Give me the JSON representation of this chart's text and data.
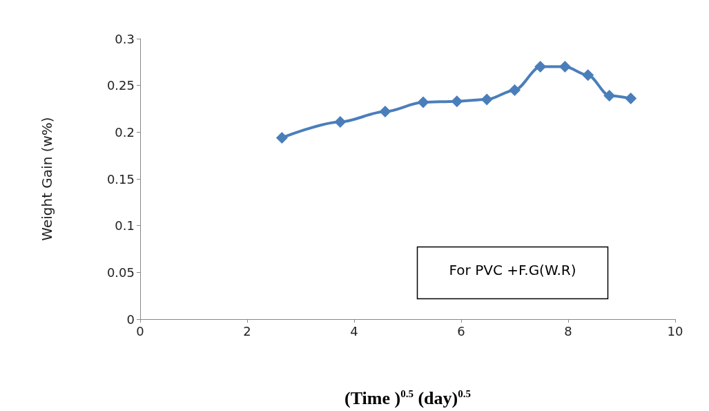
{
  "chart_data": {
    "type": "line",
    "xlabel": "(Time )$^{0.5}$ (day)$^{0.5}$",
    "ylabel": "Weight Gain (w%)",
    "x": [
      2.65,
      3.74,
      4.58,
      5.29,
      5.92,
      6.48,
      7.0,
      7.48,
      7.94,
      8.37,
      8.77,
      9.17
    ],
    "series": [
      {
        "color": "#4a7ebb",
        "values": [
          0.194,
          0.211,
          0.222,
          0.232,
          0.233,
          0.235,
          0.245,
          0.27,
          0.27,
          0.261,
          0.239,
          0.236
        ]
      }
    ],
    "xlim": [
      0,
      10
    ],
    "xticks": [
      0,
      2,
      4,
      6,
      8,
      10
    ],
    "ylim": [
      0,
      0.3
    ],
    "yticks": [
      0,
      0.05,
      0.1,
      0.15,
      0.2,
      0.25,
      0.3
    ],
    "grid": false,
    "marker": "diamond",
    "line_style": "solid",
    "annotations": [
      "For PVC +F.G(W.R)"
    ]
  }
}
